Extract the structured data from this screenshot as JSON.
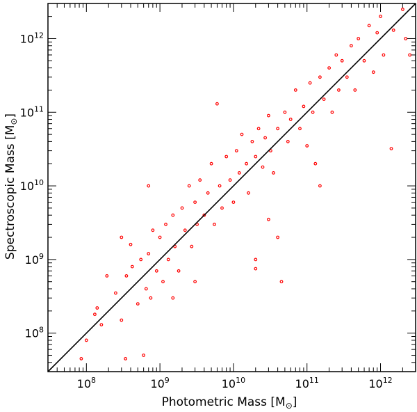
{
  "chart_data": {
    "type": "scatter",
    "xlabel": "Photometric Mass [M⊙]",
    "xlabel_text": "Photometric Mass [M",
    "xlabel_close": "]",
    "ylabel": "Spectroscopic Mass [M⊙]",
    "ylabel_text": "Spectroscopic Mass [M",
    "ylabel_close": "]",
    "x_scale": "log",
    "y_scale": "log",
    "xlim": [
      30000000,
      3000000000000
    ],
    "ylim": [
      30000000,
      3000000000000
    ],
    "x_ticks": [
      {
        "value": 100000000,
        "base": "10",
        "exp": "8"
      },
      {
        "value": 1000000000,
        "base": "10",
        "exp": "9"
      },
      {
        "value": 10000000000,
        "base": "10",
        "exp": "10"
      },
      {
        "value": 100000000000,
        "base": "10",
        "exp": "11"
      },
      {
        "value": 1000000000000,
        "base": "10",
        "exp": "12"
      }
    ],
    "y_ticks": [
      {
        "value": 100000000,
        "base": "10",
        "exp": "8"
      },
      {
        "value": 1000000000,
        "base": "10",
        "exp": "9"
      },
      {
        "value": 10000000000,
        "base": "10",
        "exp": "10"
      },
      {
        "value": 100000000000,
        "base": "10",
        "exp": "11"
      },
      {
        "value": 1000000000000,
        "base": "10",
        "exp": "12"
      }
    ],
    "grid": false,
    "marker_color": "#ff0000",
    "reference_line": {
      "type": "one-to-one",
      "color": "#000000"
    },
    "series": [
      {
        "points": [
          [
            85000000.0,
            45000000.0
          ],
          [
            100000000.0,
            80000000.0
          ],
          [
            130000000.0,
            180000000.0
          ],
          [
            140000000.0,
            220000000.0
          ],
          [
            160000000.0,
            130000000.0
          ],
          [
            190000000.0,
            600000000.0
          ],
          [
            250000000.0,
            350000000.0
          ],
          [
            300000000.0,
            150000000.0
          ],
          [
            340000000.0,
            45000000.0
          ],
          [
            350000000.0,
            600000000.0
          ],
          [
            400000000.0,
            1600000000.0
          ],
          [
            420000000.0,
            800000000.0
          ],
          [
            500000000.0,
            250000000.0
          ],
          [
            550000000.0,
            1000000000.0
          ],
          [
            600000000.0,
            50000000.0
          ],
          [
            650000000.0,
            400000000.0
          ],
          [
            700000000.0,
            1200000000.0
          ],
          [
            750000000.0,
            300000000.0
          ],
          [
            800000000.0,
            2500000000.0
          ],
          [
            900000000.0,
            700000000.0
          ],
          [
            1000000000.0,
            2000000000.0
          ],
          [
            1100000000.0,
            500000000.0
          ],
          [
            1200000000.0,
            3000000000.0
          ],
          [
            1300000000.0,
            1000000000.0
          ],
          [
            1500000000.0,
            4000000000.0
          ],
          [
            1600000000.0,
            1500000000.0
          ],
          [
            1800000000.0,
            700000000.0
          ],
          [
            2000000000.0,
            5000000000.0
          ],
          [
            2200000000.0,
            2500000000.0
          ],
          [
            2500000000.0,
            10000000000.0
          ],
          [
            2700000000.0,
            1500000000.0
          ],
          [
            3000000000.0,
            6000000000.0
          ],
          [
            3200000000.0,
            3000000000.0
          ],
          [
            3500000000.0,
            12000000000.0
          ],
          [
            4000000000.0,
            4000000000.0
          ],
          [
            4500000000.0,
            8000000000.0
          ],
          [
            5000000000.0,
            20000000000.0
          ],
          [
            5500000000.0,
            3000000000.0
          ],
          [
            6000000000.0,
            130000000000.0
          ],
          [
            6500000000.0,
            10000000000.0
          ],
          [
            7000000000.0,
            5000000000.0
          ],
          [
            8000000000.0,
            25000000000.0
          ],
          [
            9000000000.0,
            12000000000.0
          ],
          [
            10000000000.0,
            6000000000.0
          ],
          [
            11000000000.0,
            30000000000.0
          ],
          [
            12000000000.0,
            15000000000.0
          ],
          [
            13000000000.0,
            50000000000.0
          ],
          [
            15000000000.0,
            20000000000.0
          ],
          [
            16000000000.0,
            8000000000.0
          ],
          [
            18000000000.0,
            40000000000.0
          ],
          [
            20000000000.0,
            750000000.0
          ],
          [
            20000000000.0,
            25000000000.0
          ],
          [
            22000000000.0,
            60000000000.0
          ],
          [
            25000000000.0,
            18000000000.0
          ],
          [
            27000000000.0,
            45000000000.0
          ],
          [
            30000000000.0,
            90000000000.0
          ],
          [
            32000000000.0,
            30000000000.0
          ],
          [
            35000000000.0,
            15000000000.0
          ],
          [
            40000000000.0,
            60000000000.0
          ],
          [
            45000000000.0,
            500000000.0
          ],
          [
            50000000000.0,
            100000000000.0
          ],
          [
            55000000000.0,
            40000000000.0
          ],
          [
            60000000000.0,
            80000000000.0
          ],
          [
            70000000000.0,
            200000000000.0
          ],
          [
            80000000000.0,
            60000000000.0
          ],
          [
            90000000000.0,
            120000000000.0
          ],
          [
            100000000000.0,
            35000000000.0
          ],
          [
            110000000000.0,
            250000000000.0
          ],
          [
            120000000000.0,
            100000000000.0
          ],
          [
            130000000000.0,
            20000000000.0
          ],
          [
            150000000000.0,
            300000000000.0
          ],
          [
            170000000000.0,
            150000000000.0
          ],
          [
            200000000000.0,
            400000000000.0
          ],
          [
            220000000000.0,
            100000000000.0
          ],
          [
            250000000000.0,
            600000000000.0
          ],
          [
            270000000000.0,
            200000000000.0
          ],
          [
            300000000000.0,
            500000000000.0
          ],
          [
            350000000000.0,
            300000000000.0
          ],
          [
            400000000000.0,
            800000000000.0
          ],
          [
            450000000000.0,
            200000000000.0
          ],
          [
            500000000000.0,
            1000000000000.0
          ],
          [
            600000000000.0,
            500000000000.0
          ],
          [
            700000000000.0,
            1500000000000.0
          ],
          [
            800000000000.0,
            350000000000.0
          ],
          [
            900000000000.0,
            1200000000000.0
          ],
          [
            1000000000000.0,
            2000000000000.0
          ],
          [
            1100000000000.0,
            600000000000.0
          ],
          [
            1400000000000.0,
            32000000000.0
          ],
          [
            1500000000000.0,
            1300000000000.0
          ],
          [
            2000000000000.0,
            2500000000000.0
          ],
          [
            2200000000000.0,
            1000000000000.0
          ],
          [
            2500000000000.0,
            600000000000.0
          ],
          [
            1500000000.0,
            300000000.0
          ],
          [
            3000000000.0,
            500000000.0
          ],
          [
            20000000000.0,
            1000000000.0
          ],
          [
            30000000000.0,
            3500000000.0
          ],
          [
            150000000000.0,
            10000000000.0
          ],
          [
            40000000000.0,
            2000000000.0
          ],
          [
            700000000.0,
            10000000000.0
          ],
          [
            300000000.0,
            2000000000.0
          ]
        ]
      }
    ]
  }
}
